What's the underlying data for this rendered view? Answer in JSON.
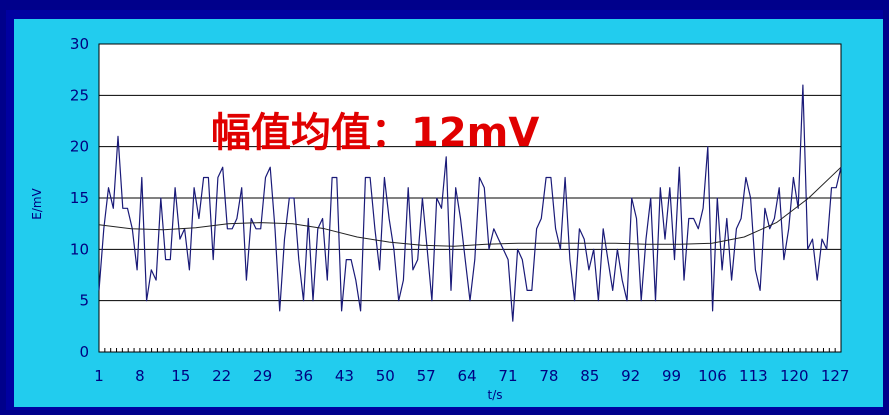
{
  "chart_data": {
    "type": "line",
    "xlabel": "t/s",
    "ylabel": "E/mV",
    "ylim": [
      0,
      30
    ],
    "yticks": [
      0,
      5,
      10,
      15,
      20,
      25,
      30
    ],
    "xlim": [
      1,
      128
    ],
    "xticks": [
      "1",
      "8",
      "15",
      "22",
      "29",
      "36",
      "43",
      "50",
      "57",
      "64",
      "71",
      "78",
      "85",
      "92",
      "99",
      "106",
      "113",
      "120",
      "127"
    ],
    "grid": "horizontal",
    "annotation": "幅值均值：12mV",
    "colors": {
      "series": "#1a1a78",
      "trend": "#222222",
      "plot_bg": "#ffffff",
      "grid": "#000000"
    },
    "series": [
      {
        "values": [
          6,
          12,
          16,
          14,
          21,
          14,
          14,
          12,
          8,
          17,
          5,
          8,
          7,
          15,
          9,
          9,
          16,
          11,
          12,
          8,
          16,
          13,
          17,
          17,
          9,
          17,
          18,
          12,
          12,
          13,
          16,
          7,
          13,
          12,
          12,
          17,
          18,
          12,
          4,
          11,
          15,
          15,
          9,
          5,
          13,
          5,
          12,
          13,
          7,
          17,
          17,
          4,
          9,
          9,
          7,
          4,
          17,
          17,
          12,
          8,
          17,
          13,
          10,
          5,
          7,
          16,
          8,
          9,
          15,
          10,
          5,
          15,
          14,
          19,
          6,
          16,
          13,
          9,
          5,
          9,
          17,
          16,
          10,
          12,
          11,
          10,
          9,
          3,
          10,
          9,
          6,
          6,
          12,
          13,
          17,
          17,
          12,
          10,
          17,
          9,
          5,
          12,
          11,
          8,
          10,
          5,
          12,
          9,
          6,
          10,
          7,
          5,
          15,
          13,
          5,
          11,
          15,
          5,
          16,
          11,
          16,
          9,
          18,
          7,
          13,
          13,
          12,
          14,
          20,
          4,
          15,
          8,
          13,
          7,
          12,
          13,
          17,
          15,
          8,
          6,
          14,
          12,
          13,
          16,
          9,
          12,
          17,
          14,
          26,
          10,
          11,
          7,
          11,
          10,
          16,
          16,
          18
        ]
      },
      {
        "values": [
          12.4,
          12.0,
          11.9,
          12.1,
          12.5,
          12.6,
          12.5,
          12.0,
          11.2,
          10.7,
          10.4,
          10.3,
          10.5,
          10.6,
          10.6,
          10.6,
          10.6,
          10.5,
          10.5,
          10.6,
          11.2,
          12.6,
          15.0,
          18.0
        ]
      }
    ]
  }
}
